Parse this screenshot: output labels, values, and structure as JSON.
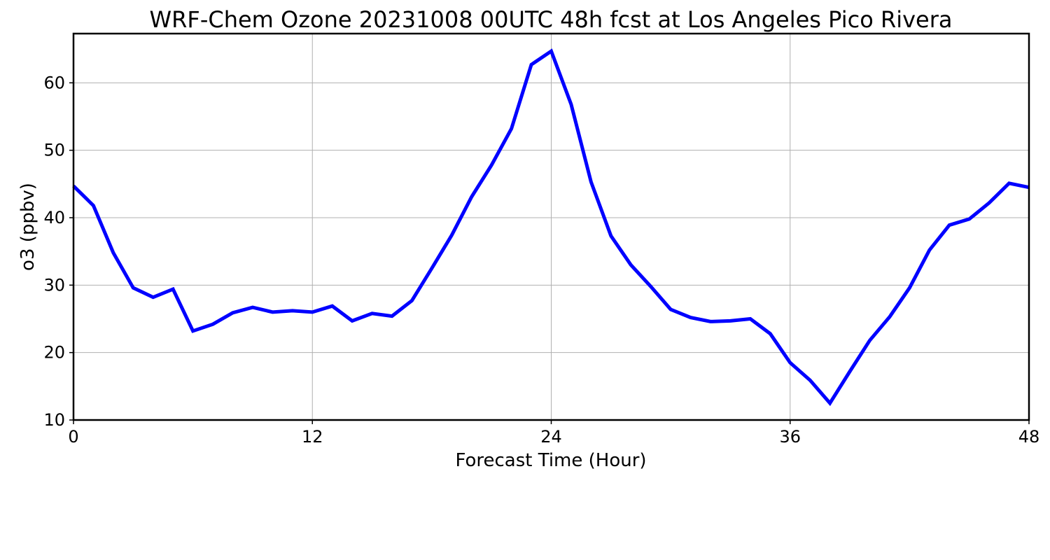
{
  "chart_data": {
    "type": "line",
    "title": "WRF-Chem Ozone  20231008 00UTC 48h fcst at Los Angeles Pico Rivera",
    "xlabel": "Forecast Time (Hour)",
    "ylabel": "o3  (ppbv)",
    "xlim": [
      0,
      48
    ],
    "ylim": [
      10,
      67.3
    ],
    "xticks": [
      0,
      12,
      24,
      36,
      48
    ],
    "yticks": [
      10,
      20,
      30,
      40,
      50,
      60
    ],
    "grid": true,
    "series": [
      {
        "color": "#0000ff",
        "x": [
          0,
          1,
          2,
          3,
          4,
          5,
          6,
          7,
          8,
          9,
          10,
          11,
          12,
          13,
          14,
          15,
          16,
          17,
          18,
          19,
          20,
          21,
          22,
          23,
          24,
          25,
          26,
          27,
          28,
          29,
          30,
          31,
          32,
          33,
          34,
          35,
          36,
          37,
          38,
          39,
          40,
          41,
          42,
          43,
          44,
          45,
          46,
          47,
          48
        ],
        "values": [
          44.7,
          41.8,
          34.8,
          29.6,
          28.2,
          29.4,
          23.2,
          24.2,
          25.9,
          26.7,
          26.0,
          26.2,
          26.0,
          26.9,
          24.7,
          25.8,
          25.4,
          27.7,
          32.5,
          37.4,
          43.1,
          47.8,
          53.2,
          62.7,
          64.7,
          56.8,
          45.3,
          37.3,
          33.0,
          29.8,
          26.4,
          25.2,
          24.6,
          24.7,
          25.0,
          22.8,
          18.5,
          15.9,
          12.5,
          17.2,
          21.8,
          25.3,
          29.6,
          35.2,
          38.9,
          39.8,
          42.2,
          45.1,
          44.5
        ]
      }
    ]
  }
}
